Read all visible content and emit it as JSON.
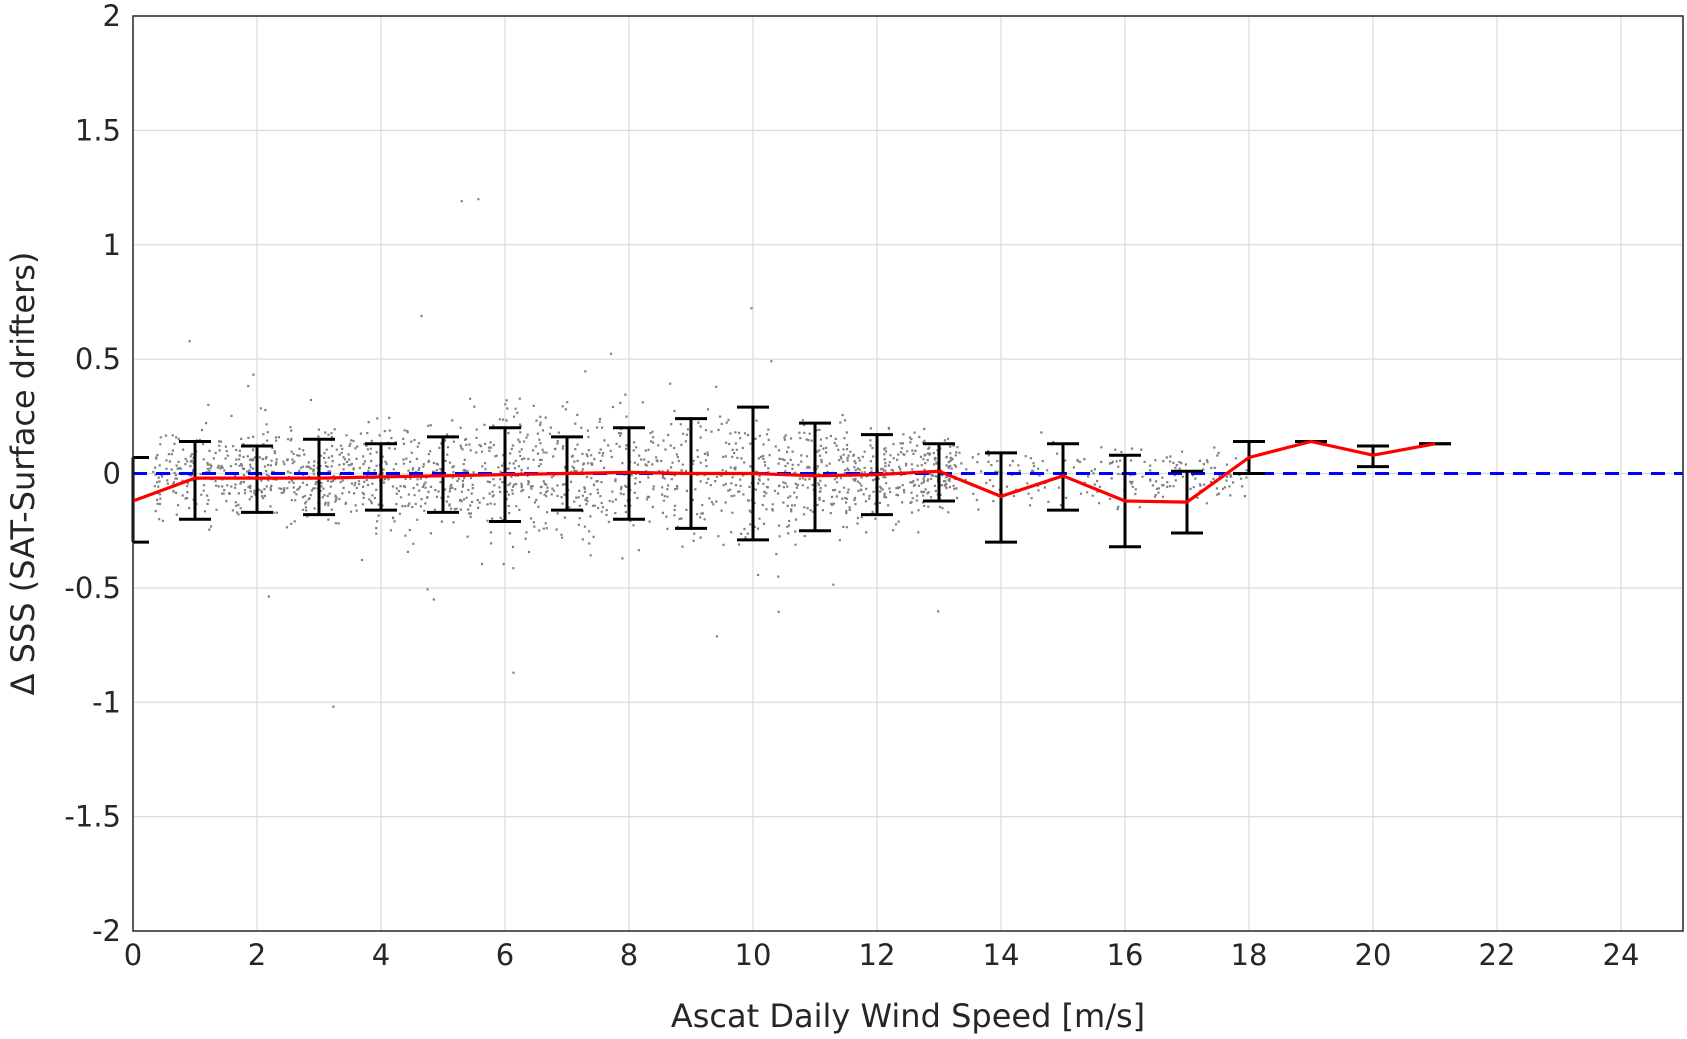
{
  "chart_data": {
    "type": "scatter",
    "xlabel": "Ascat Daily Wind Speed [m/s]",
    "ylabel": "Δ SSS (SAT-Surface drifters)",
    "xlim": [
      0,
      25
    ],
    "ylim": [
      -2,
      2
    ],
    "xticks": [
      0,
      2,
      4,
      6,
      8,
      10,
      12,
      14,
      16,
      18,
      20,
      22,
      24
    ],
    "yticks": [
      -2,
      -1.5,
      -1,
      -0.5,
      0,
      0.5,
      1,
      1.5,
      2
    ],
    "grid": true,
    "colors": {
      "scatter": "#808080",
      "mean_line": "#ff0000",
      "zero_line": "#0000ff",
      "error_bars": "#000000"
    },
    "zero_line": {
      "y": 0,
      "style": "dashed"
    },
    "scatter_cloud": {
      "x_range": [
        0,
        18
      ],
      "envelope": [
        {
          "x": 0.5,
          "sd": 0.09
        },
        {
          "x": 1,
          "sd": 0.1
        },
        {
          "x": 2,
          "sd": 0.1
        },
        {
          "x": 3,
          "sd": 0.11
        },
        {
          "x": 4,
          "sd": 0.12
        },
        {
          "x": 5,
          "sd": 0.13
        },
        {
          "x": 6,
          "sd": 0.15
        },
        {
          "x": 7,
          "sd": 0.15
        },
        {
          "x": 8,
          "sd": 0.15
        },
        {
          "x": 9,
          "sd": 0.15
        },
        {
          "x": 10,
          "sd": 0.14
        },
        {
          "x": 11,
          "sd": 0.12
        },
        {
          "x": 12,
          "sd": 0.1
        },
        {
          "x": 13,
          "sd": 0.08
        },
        {
          "x": 14,
          "sd": 0.07
        },
        {
          "x": 15,
          "sd": 0.07
        },
        {
          "x": 16,
          "sd": 0.07
        },
        {
          "x": 17,
          "sd": 0.06
        },
        {
          "x": 18,
          "sd": 0.05
        }
      ]
    },
    "series": [
      {
        "x": [
          0,
          1,
          2,
          3,
          4,
          5,
          6,
          7,
          8,
          9,
          10,
          11,
          12,
          13,
          14,
          15,
          16,
          17,
          18,
          19,
          20,
          21
        ],
        "values": [
          -0.12,
          -0.02,
          -0.02,
          -0.02,
          -0.015,
          -0.01,
          -0.005,
          0,
          0.005,
          0,
          0,
          -0.01,
          -0.005,
          0.01,
          -0.1,
          -0.01,
          -0.12,
          -0.125,
          0.07,
          0.14,
          0.08,
          0.13
        ]
      }
    ],
    "error_bars": {
      "x": [
        0,
        1,
        2,
        3,
        4,
        5,
        6,
        7,
        8,
        9,
        10,
        11,
        12,
        13,
        14,
        15,
        16,
        17,
        18,
        19,
        20,
        21
      ],
      "upper": [
        0.07,
        0.14,
        0.12,
        0.15,
        0.13,
        0.16,
        0.2,
        0.16,
        0.2,
        0.24,
        0.29,
        0.22,
        0.17,
        0.13,
        0.09,
        0.13,
        0.08,
        0.01,
        0.14,
        0.14,
        0.12,
        0.13
      ],
      "lower": [
        -0.3,
        -0.2,
        -0.17,
        -0.18,
        -0.16,
        -0.17,
        -0.21,
        -0.16,
        -0.2,
        -0.24,
        -0.29,
        -0.25,
        -0.18,
        -0.12,
        -0.3,
        -0.16,
        -0.32,
        -0.26,
        0.0,
        0.14,
        0.03,
        0.13
      ]
    }
  }
}
